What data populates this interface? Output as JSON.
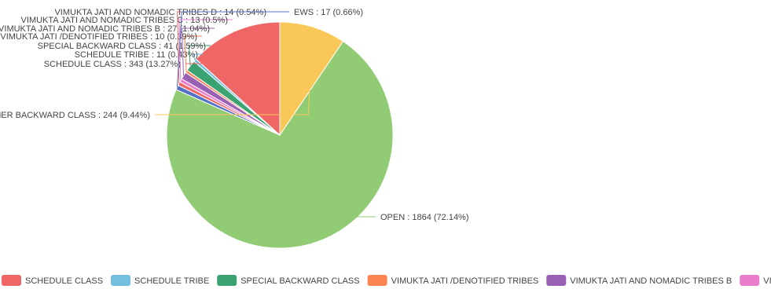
{
  "chart_data": {
    "type": "pie",
    "title": "",
    "slices": [
      {
        "label": "SCHEDULE CLASS",
        "value": 343,
        "percent": "13.27%",
        "color": "#ee6666"
      },
      {
        "label": "SCHEDULE TRIBE",
        "value": 11,
        "percent": "0.43%",
        "color": "#73c0de"
      },
      {
        "label": "SPECIAL BACKWARD CLASS",
        "value": 41,
        "percent": "1.59%",
        "color": "#3ba272"
      },
      {
        "label": "VIMUKTA JATI /DENOTIFIED TRIBES",
        "value": 10,
        "percent": "0.39%",
        "color": "#fc8452"
      },
      {
        "label": "VIMUKTA JATI AND NOMADIC TRIBES B",
        "value": 27,
        "percent": "1.04%",
        "color": "#9a60b4"
      },
      {
        "label": "VIMUKTA JATI AND NOMADIC TRIBES C",
        "value": 13,
        "percent": "0.5%",
        "color": "#ea7ccc"
      },
      {
        "label": "VIMUKTA JATI AND NOMADIC TRIBES D",
        "value": 14,
        "percent": "0.54%",
        "color": "#ee6666"
      },
      {
        "label": "EWS",
        "value": 17,
        "percent": "0.66%",
        "color": "#5470c6"
      },
      {
        "label": "OPEN",
        "value": 1864,
        "percent": "72.14%",
        "color": "#91cc75"
      },
      {
        "label": "OTHER BACKWARD CLASS",
        "value": 244,
        "percent": "9.44%",
        "color": "#fac858"
      }
    ],
    "legend_entries": [
      {
        "label": "SCHEDULE CLASS",
        "color": "#ee6666"
      },
      {
        "label": "SCHEDULE TRIBE",
        "color": "#73c0de"
      },
      {
        "label": "SPECIAL BACKWARD CLASS",
        "color": "#3ba272"
      },
      {
        "label": "VIMUKTA JATI /DENOTIFIED TRIBES",
        "color": "#fc8452"
      },
      {
        "label": "VIMUKTA JATI AND NOMADIC TRIBES B",
        "color": "#9a60b4"
      },
      {
        "label": "VIMUKTA JATI AND NOMADIC TRIBES C",
        "color": "#ea7ccc"
      }
    ],
    "legend_position": "bottom"
  }
}
